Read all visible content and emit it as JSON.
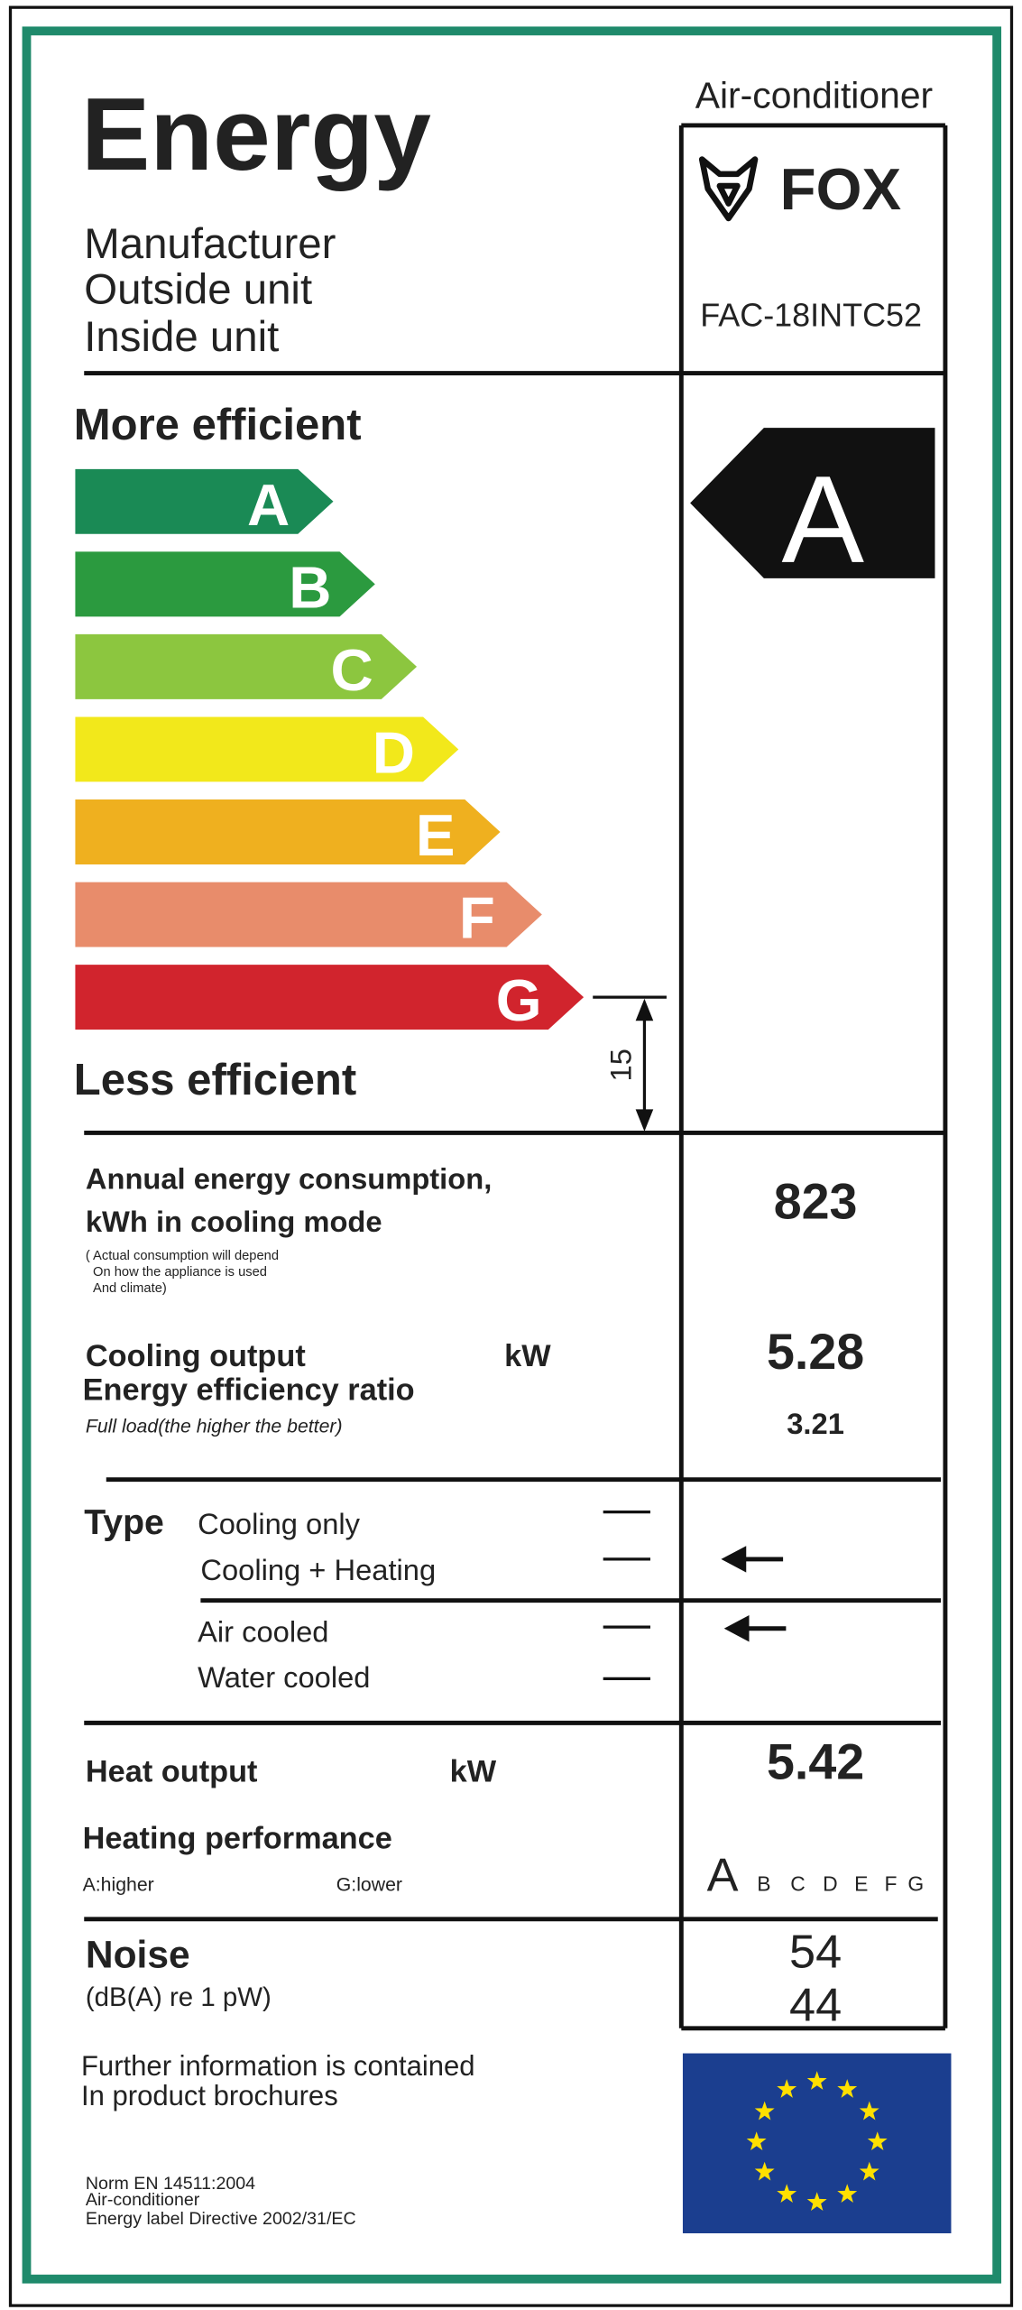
{
  "header": {
    "title": "Energy",
    "category": "Air-conditioner",
    "fields": [
      "Manufacturer",
      "Outside unit",
      "Inside unit"
    ],
    "brand": "FOX",
    "model": "FAC-18INTC52"
  },
  "scale": {
    "top": "More efficient",
    "bottom": "Less efficient",
    "classes": [
      "A",
      "B",
      "C",
      "D",
      "E",
      "F",
      "G"
    ],
    "rating": "A",
    "height": 15
  },
  "consumption": {
    "label": [
      "Annual energy consumption,",
      "kWh in cooling mode"
    ],
    "note": [
      "( Actual consumption will depend",
      "On how the appliance is used",
      "And climate)"
    ],
    "value": 823
  },
  "cooling": {
    "label": "Cooling output",
    "unit": "kW",
    "value": 5.28,
    "ratio_label": "Energy efficiency ratio",
    "ratio_note": "Full load(the higher the better)",
    "ratio": 3.21
  },
  "type": {
    "label": "Type",
    "options": [
      "Cooling only",
      "Cooling + Heating",
      "Air cooled",
      "Water cooled"
    ]
  },
  "heat": {
    "label": "Heat output",
    "unit": "kW",
    "value": 5.42,
    "performance_label": "Heating performance",
    "higher": "A:higher",
    "lower": "G:lower"
  },
  "noise": {
    "label": "Noise",
    "unit": "(dB(A) re 1 pW)",
    "values": [
      54,
      44
    ]
  },
  "footer": {
    "info": [
      "Further information is contained",
      "In product brochures"
    ],
    "norms": [
      "Norm EN 14511:2004",
      "Air-conditioner",
      "Energy label Directive 2002/31/EC"
    ]
  }
}
